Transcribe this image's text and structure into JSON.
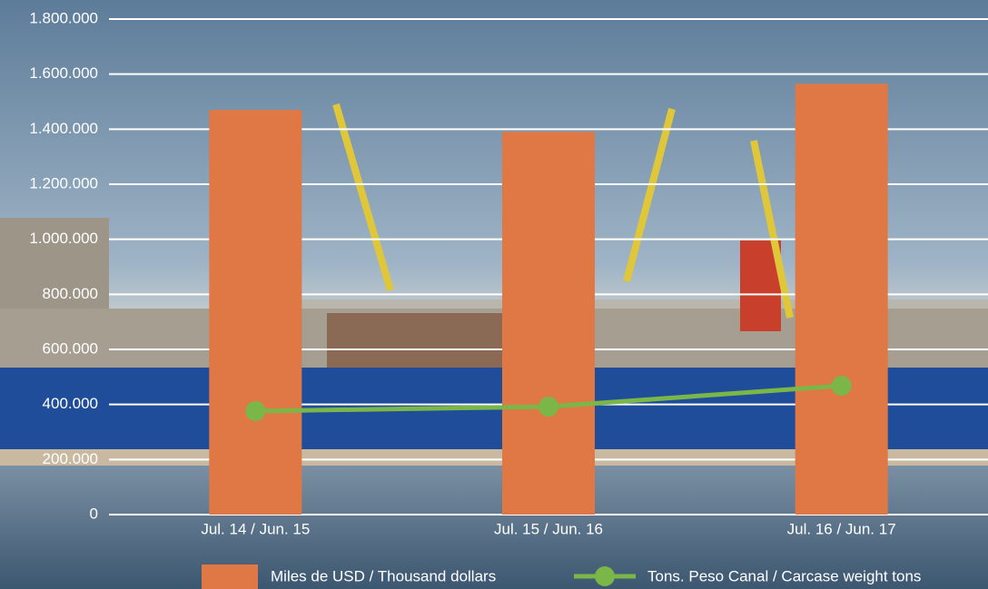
{
  "chart_data": {
    "type": "bar_line",
    "categories": [
      "Jul. 14 / Jun. 15",
      "Jul. 15 / Jun. 16",
      "Jul. 16 / Jun. 17"
    ],
    "series": [
      {
        "name": "Miles de USD / Thousand dollars",
        "type": "bar",
        "color": "#e07845",
        "values": [
          1470000,
          1390000,
          1565000
        ]
      },
      {
        "name": "Tons. Peso Canal / Carcase weight tons",
        "type": "line",
        "color": "#7ab648",
        "values": [
          376000,
          392000,
          468000
        ]
      }
    ],
    "ylim": [
      0,
      1800000
    ],
    "yticks": [
      0,
      {
        "value": 200000,
        "label": "200.000"
      },
      {
        "value": 400000,
        "label": "400.000"
      },
      {
        "value": 600000,
        "label": "600.000"
      },
      {
        "value": 800000,
        "label": "800.000"
      },
      {
        "value": 1000000,
        "label": "1.000.000"
      },
      {
        "value": 1200000,
        "label": "1.200.000"
      },
      {
        "value": 1400000,
        "label": "1.400.000"
      },
      {
        "value": 1600000,
        "label": "1.600.000"
      },
      {
        "value": 1800000,
        "label": "1.800.000"
      }
    ],
    "grid": true
  }
}
